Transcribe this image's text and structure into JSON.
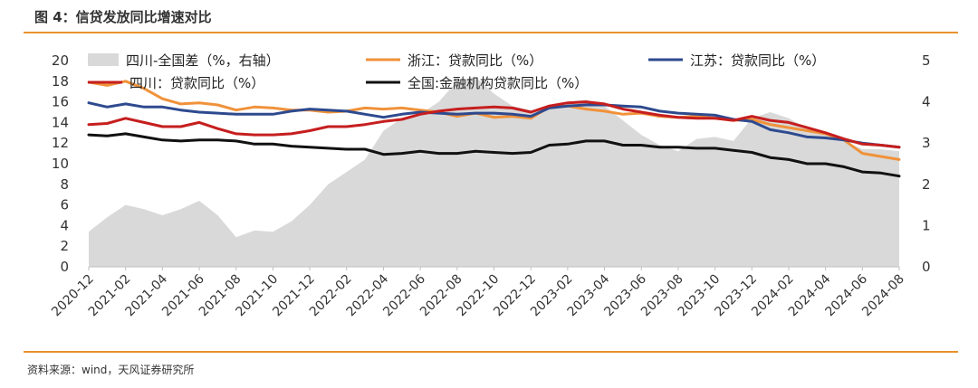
{
  "figure": {
    "title": "图 4：信贷发放同比增速对比",
    "source": "资料来源：wind，天风证券研究所"
  },
  "chart_data": {
    "type": "line",
    "title": "图 4：信贷发放同比增速对比",
    "x": [
      "2020-12",
      "2021-01",
      "2021-02",
      "2021-03",
      "2021-04",
      "2021-05",
      "2021-06",
      "2021-07",
      "2021-08",
      "2021-09",
      "2021-10",
      "2021-11",
      "2021-12",
      "2022-01",
      "2022-02",
      "2022-03",
      "2022-04",
      "2022-05",
      "2022-06",
      "2022-07",
      "2022-08",
      "2022-09",
      "2022-10",
      "2022-11",
      "2022-12",
      "2023-01",
      "2023-02",
      "2023-03",
      "2023-04",
      "2023-05",
      "2023-06",
      "2023-07",
      "2023-08",
      "2023-09",
      "2023-10",
      "2023-11",
      "2023-12",
      "2024-01",
      "2024-02",
      "2024-03",
      "2024-04",
      "2024-05",
      "2024-06",
      "2024-07",
      "2024-08"
    ],
    "xticks": [
      "2020-12",
      "2021-02",
      "2021-04",
      "2021-06",
      "2021-08",
      "2021-10",
      "2021-12",
      "2022-02",
      "2022-04",
      "2022-06",
      "2022-08",
      "2022-10",
      "2022-12",
      "2023-02",
      "2023-04",
      "2023-06",
      "2023-08",
      "2023-10",
      "2023-12",
      "2024-02",
      "2024-04",
      "2024-06",
      "2024-08"
    ],
    "y_left": {
      "min": 0,
      "max": 20,
      "ticks": [
        0,
        2,
        4,
        6,
        8,
        10,
        12,
        14,
        16,
        18,
        20
      ]
    },
    "y_right": {
      "min": 0,
      "max": 5,
      "ticks": [
        0,
        1,
        2,
        3,
        4,
        5
      ]
    },
    "legend_placement": "top",
    "series": [
      {
        "name": "四川-全国差（%，右轴）",
        "type": "area",
        "axis": "right",
        "color": "#d9d9d9",
        "values": [
          0.85,
          1.2,
          1.5,
          1.4,
          1.25,
          1.4,
          1.6,
          1.25,
          0.72,
          0.88,
          0.85,
          1.1,
          1.5,
          2.0,
          2.3,
          2.6,
          3.3,
          3.6,
          3.7,
          4.0,
          4.5,
          4.6,
          4.2,
          3.9,
          3.8,
          3.85,
          4.0,
          4.05,
          3.9,
          3.55,
          3.2,
          2.95,
          2.8,
          3.1,
          3.15,
          3.05,
          3.6,
          3.75,
          3.6,
          3.35,
          3.2,
          3.05,
          2.85,
          2.85,
          2.8
        ]
      },
      {
        "name": "浙江：贷款同比（%）",
        "type": "line",
        "axis": "left",
        "color": "#f0923a",
        "values": [
          17.9,
          17.6,
          18.0,
          17.3,
          16.3,
          15.8,
          15.9,
          15.7,
          15.2,
          15.5,
          15.4,
          15.2,
          15.2,
          15.0,
          15.1,
          15.4,
          15.3,
          15.4,
          15.2,
          15.0,
          14.6,
          14.9,
          14.5,
          14.6,
          14.4,
          15.5,
          15.6,
          15.3,
          15.1,
          14.8,
          14.9,
          14.6,
          14.5,
          14.6,
          14.4,
          14.2,
          14.3,
          13.8,
          13.5,
          13.2,
          12.9,
          12.3,
          11.0,
          10.7,
          10.4
        ]
      },
      {
        "name": "江苏：贷款同比（%）",
        "type": "line",
        "axis": "left",
        "color": "#2e4a8f",
        "values": [
          15.9,
          15.5,
          15.8,
          15.5,
          15.5,
          15.2,
          15.0,
          14.9,
          14.8,
          14.8,
          14.8,
          15.1,
          15.3,
          15.2,
          15.1,
          14.8,
          14.5,
          14.8,
          15.0,
          14.9,
          14.8,
          14.9,
          14.9,
          14.8,
          14.6,
          15.4,
          15.6,
          15.7,
          15.7,
          15.6,
          15.5,
          15.1,
          14.9,
          14.8,
          14.7,
          14.3,
          14.1,
          13.3,
          13.0,
          12.6,
          12.5,
          12.3,
          12.0,
          11.8,
          11.6
        ]
      },
      {
        "name": "四川：贷款同比（%）",
        "type": "line",
        "axis": "left",
        "color": "#c61e1e",
        "values": [
          13.8,
          13.9,
          14.4,
          14.0,
          13.6,
          13.6,
          14.0,
          13.4,
          12.9,
          12.8,
          12.8,
          12.9,
          13.2,
          13.6,
          13.6,
          13.8,
          14.1,
          14.3,
          14.8,
          15.1,
          15.3,
          15.4,
          15.5,
          15.4,
          15.0,
          15.6,
          15.9,
          16.0,
          15.8,
          15.3,
          15.0,
          14.7,
          14.5,
          14.4,
          14.4,
          14.2,
          14.6,
          14.2,
          14.0,
          13.5,
          13.0,
          12.4,
          11.9,
          11.8,
          11.6
        ]
      },
      {
        "name": "全国:金融机构贷款同比（%）",
        "type": "line",
        "axis": "left",
        "color": "#111111",
        "values": [
          12.8,
          12.7,
          12.9,
          12.6,
          12.3,
          12.2,
          12.3,
          12.3,
          12.2,
          11.9,
          11.9,
          11.7,
          11.6,
          11.5,
          11.4,
          11.4,
          10.9,
          11.0,
          11.2,
          11.0,
          11.0,
          11.2,
          11.1,
          11.0,
          11.1,
          11.8,
          11.9,
          12.2,
          12.2,
          11.8,
          11.8,
          11.6,
          11.6,
          11.5,
          11.5,
          11.3,
          11.1,
          10.6,
          10.4,
          10.0,
          10.0,
          9.7,
          9.2,
          9.1,
          8.8
        ]
      }
    ]
  }
}
